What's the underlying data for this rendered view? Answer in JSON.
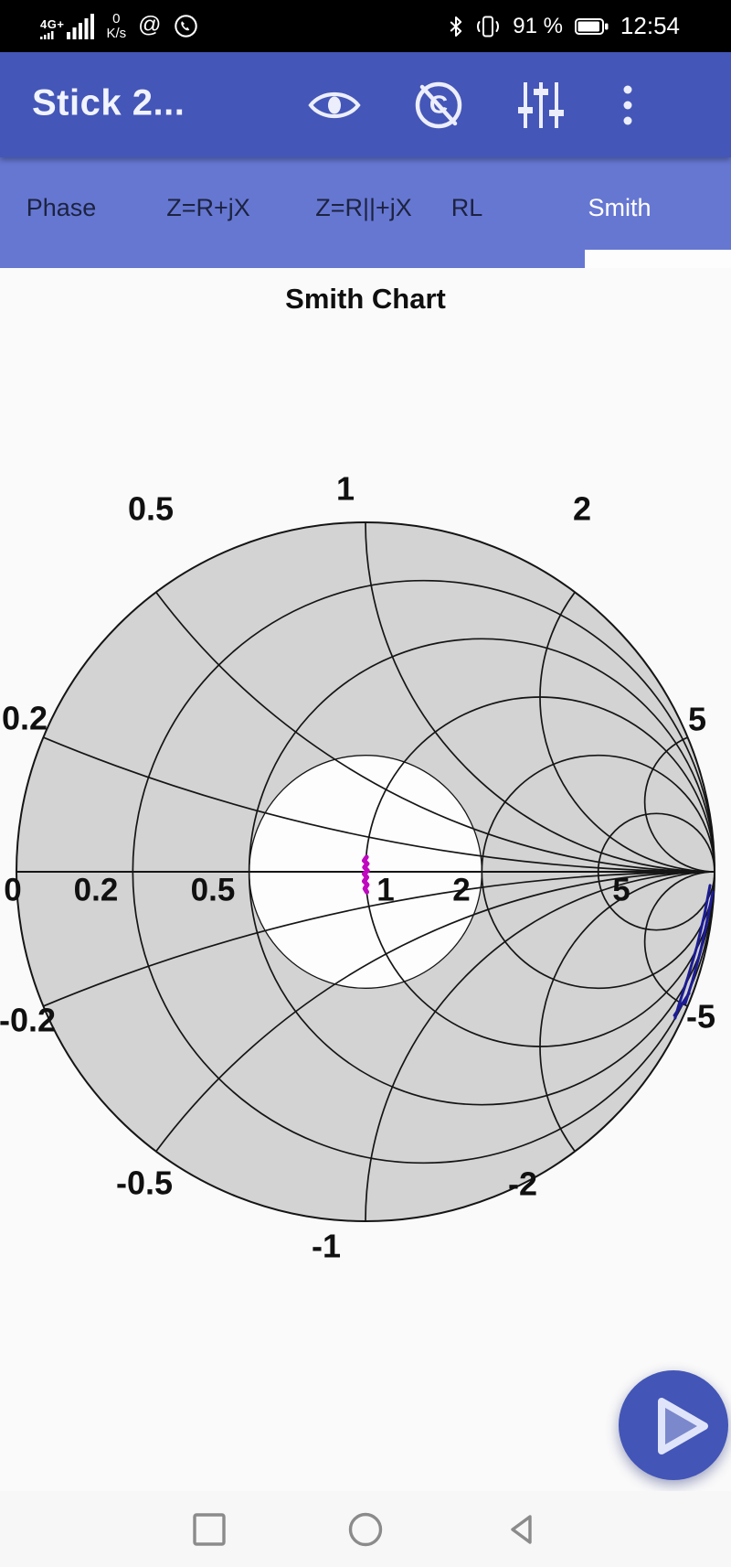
{
  "status_bar": {
    "network": "4G+",
    "speed_value": "0",
    "speed_unit": "K/s",
    "at_sign": "@",
    "battery_percent": "91 %",
    "time": "12:54"
  },
  "app_bar": {
    "title": "Stick 2...",
    "icons": [
      "eye-icon",
      "calibration-off-icon",
      "sliders-icon",
      "overflow-menu-icon"
    ]
  },
  "tab_bar": {
    "tabs": [
      {
        "label": "Phase",
        "selected": false
      },
      {
        "label": "Z=R+jX",
        "selected": false
      },
      {
        "label": "Z=R||+jX",
        "selected": false
      },
      {
        "label": "RL",
        "selected": false
      },
      {
        "label": "Smith",
        "selected": true
      }
    ]
  },
  "content": {
    "title": "Smith Chart"
  },
  "chart_data": {
    "type": "smith",
    "title": "Smith Chart",
    "resistance_circles": [
      0.2,
      0.5,
      1,
      2,
      5
    ],
    "reactance_arcs": [
      0.2,
      0.5,
      1,
      2,
      5,
      -0.2,
      -0.5,
      -1,
      -2,
      -5
    ],
    "axis_tick_labels": [
      "0",
      "0.2",
      "0.5",
      "1",
      "2",
      "5"
    ],
    "rim_labels": [
      "1",
      "0.5",
      "2",
      "0.2",
      "5",
      "-0.2",
      "-0.5",
      "-1",
      "-2",
      "-5"
    ],
    "highlight_circle": {
      "label": "VSWR 2 region",
      "gamma_radius": 0.3333
    },
    "colors": {
      "disk": "#d3d3d3",
      "highlight": "#fdfdfd",
      "grid": "#151515",
      "trace_primary": "#c008c0",
      "trace_secondary": "#1b1b95"
    },
    "traces": [
      {
        "name": "impedance-trace-magenta",
        "color_key": "trace_primary",
        "stroke_width": 5,
        "segments": [
          [
            [
              0.003,
              0.042
            ],
            [
              -0.004,
              0.032
            ],
            [
              0.005,
              0.023
            ],
            [
              -0.003,
              0.013
            ],
            [
              0.006,
              0.003
            ],
            [
              -0.004,
              -0.006
            ],
            [
              0.004,
              -0.016
            ],
            [
              -0.004,
              -0.027
            ],
            [
              0.005,
              -0.037
            ],
            [
              -0.002,
              -0.048
            ],
            [
              0.004,
              -0.058
            ]
          ]
        ]
      },
      {
        "name": "impedance-trace-blue",
        "color_key": "trace_secondary",
        "stroke_width": 3,
        "segments": [
          [
            [
              0.987,
              -0.039
            ],
            [
              0.971,
              -0.123
            ],
            [
              0.95,
              -0.212
            ],
            [
              0.924,
              -0.301
            ],
            [
              0.898,
              -0.38
            ],
            [
              0.887,
              -0.419
            ]
          ],
          [
            [
              0.995,
              -0.058
            ],
            [
              0.979,
              -0.139
            ],
            [
              0.961,
              -0.222
            ],
            [
              0.937,
              -0.311
            ],
            [
              0.916,
              -0.377
            ]
          ],
          [
            [
              0.885,
              -0.411
            ],
            [
              0.927,
              -0.348
            ]
          ]
        ]
      }
    ]
  },
  "fab": {
    "action": "start-sweep",
    "icon": "play-icon"
  },
  "nav_bar": {
    "buttons": [
      "recents",
      "home",
      "back"
    ]
  }
}
